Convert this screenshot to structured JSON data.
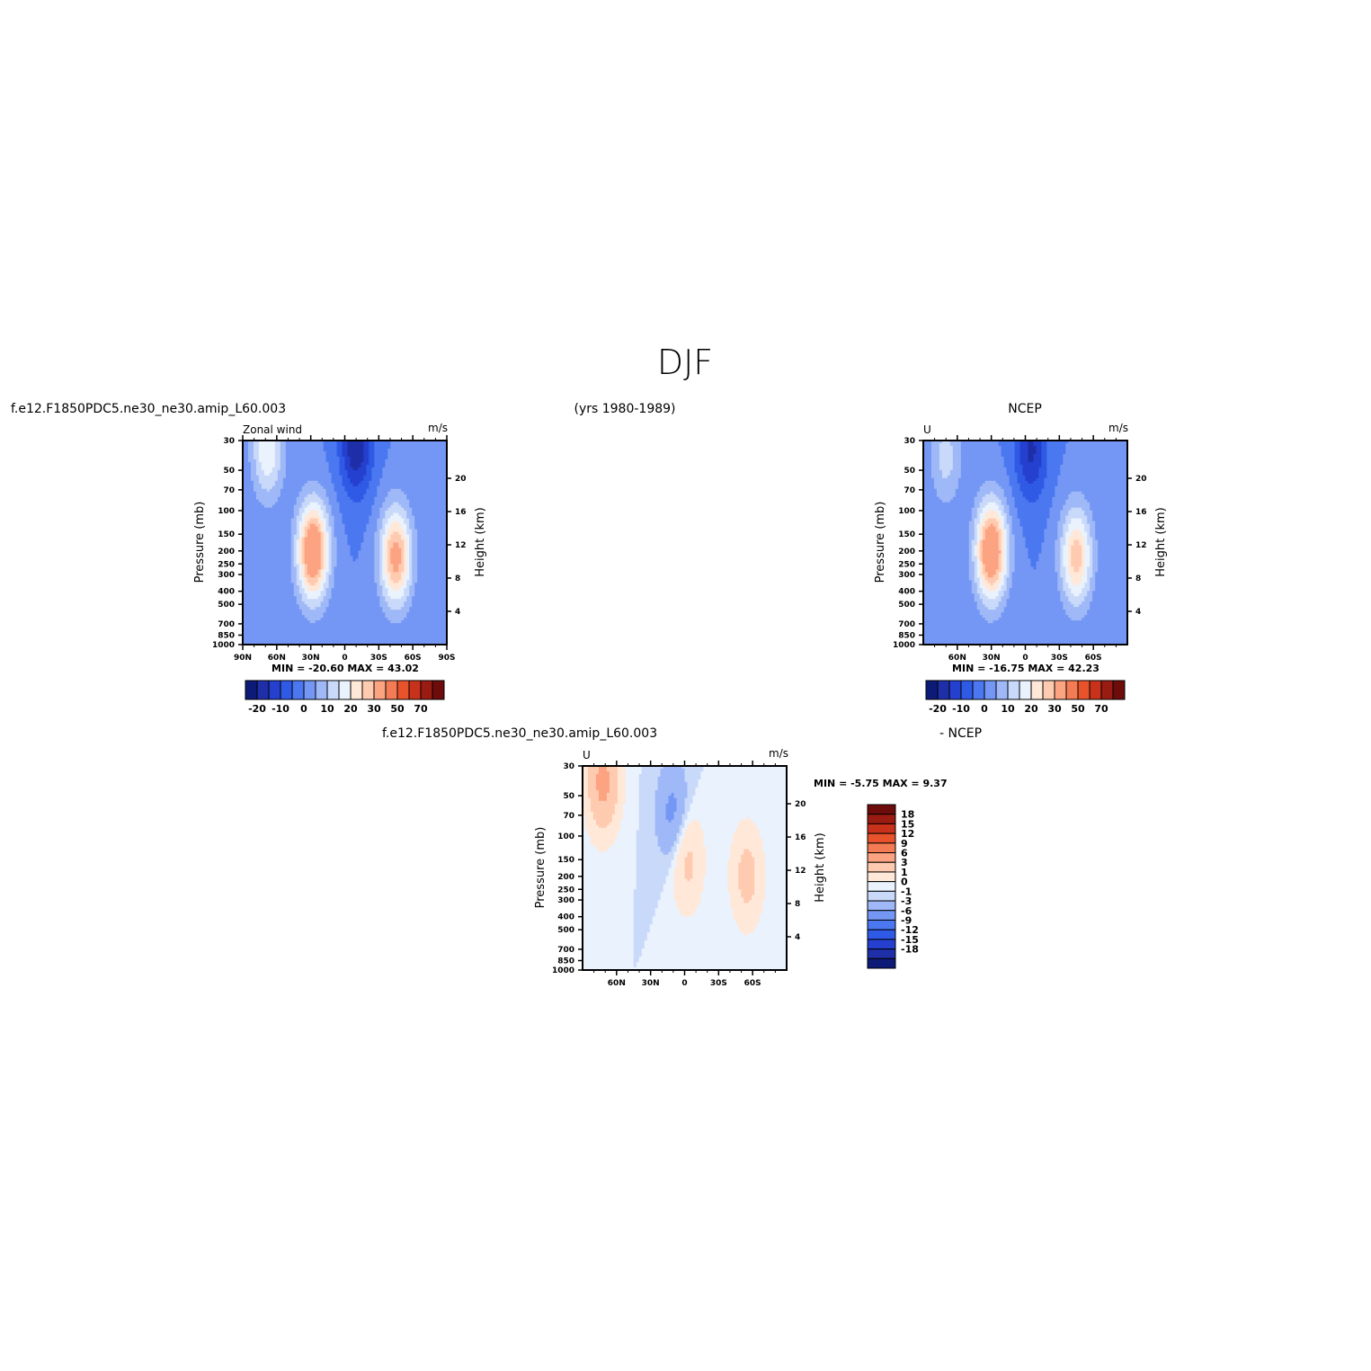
{
  "title": "DJF",
  "header": {
    "left": "f.e12.F1850PDC5.ne30_ne30.amip_L60.003",
    "center": "(yrs 1980-1989)",
    "right": "NCEP"
  },
  "panels": {
    "model": {
      "var_label": "Zonal wind",
      "units": "m/s",
      "min_max": "MIN = -20.60   MAX =   43.02"
    },
    "obs": {
      "var_label": "U",
      "units": "m/s",
      "min_max": "MIN = -16.75   MAX =   42.23"
    },
    "diff": {
      "title_left": "f.e12.F1850PDC5.ne30_ne30.amip_L60.003",
      "title_right": "- NCEP",
      "var_label": "U",
      "units": "m/s",
      "min_max": "MIN =   -5.75   MAX =     9.37"
    }
  },
  "axes": {
    "ylabel_left": "Pressure (mb)",
    "ylabel_right": "Height (km)",
    "pressure_ticks": [
      "30",
      "50",
      "70",
      "100",
      "150",
      "200",
      "250",
      "300",
      "400",
      "500",
      "700",
      "850",
      "1000"
    ],
    "height_ticks": [
      "20",
      "16",
      "12",
      "8",
      "4"
    ],
    "lat_ticks_full": [
      "90N",
      "60N",
      "30N",
      "0",
      "30S",
      "60S",
      "90S"
    ],
    "lat_ticks_inner": [
      "60N",
      "30N",
      "0",
      "30S",
      "60S"
    ]
  },
  "chart_data": [
    {
      "type": "heatmap",
      "panel": "model",
      "title": "Zonal wind",
      "xlabel": "",
      "ylabel": "Pressure (mb)",
      "y2label": "Height (km)",
      "units": "m/s",
      "x_range": [
        "90N",
        "90S"
      ],
      "y_range_mb": [
        1000,
        30
      ],
      "min": -20.6,
      "max": 43.02,
      "features": [
        {
          "kind": "max",
          "lat": 28,
          "p": 200,
          "value": 40
        },
        {
          "kind": "max",
          "lat": -45,
          "p": 220,
          "value": 33
        },
        {
          "kind": "max",
          "lat": 68,
          "p": 35,
          "value": 20
        },
        {
          "kind": "min",
          "lat": -10,
          "p": 32,
          "value": -20
        }
      ],
      "colorbar_levels": [
        -20,
        -15,
        -10,
        -5,
        0,
        5,
        10,
        15,
        20,
        25,
        30,
        40,
        50,
        60,
        70
      ],
      "colorbar_labels": [
        "-20",
        "-10",
        "0",
        "10",
        "20",
        "30",
        "50",
        "70"
      ],
      "colors": [
        "#0d1a78",
        "#1e2fa8",
        "#2540cf",
        "#2f5ae6",
        "#4b78f0",
        "#7497f5",
        "#9fb8f7",
        "#c8d9fa",
        "#e9f2fd",
        "#ffe8d8",
        "#ffcbb0",
        "#fca382",
        "#f47c55",
        "#e8532c",
        "#c8321a",
        "#9a1b12",
        "#6e0c0c"
      ]
    },
    {
      "type": "heatmap",
      "panel": "obs",
      "title": "U",
      "xlabel": "",
      "ylabel": "Pressure (mb)",
      "y2label": "Height (km)",
      "units": "m/s",
      "x_range": [
        "90N",
        "90S"
      ],
      "y_range_mb": [
        1000,
        30
      ],
      "min": -16.75,
      "max": 42.23,
      "features": [
        {
          "kind": "max",
          "lat": 30,
          "p": 200,
          "value": 40
        },
        {
          "kind": "max",
          "lat": -45,
          "p": 220,
          "value": 28
        },
        {
          "kind": "max",
          "lat": 70,
          "p": 40,
          "value": 12
        },
        {
          "kind": "min",
          "lat": -5,
          "p": 35,
          "value": -16
        }
      ],
      "colorbar_levels": [
        -20,
        -15,
        -10,
        -5,
        0,
        5,
        10,
        15,
        20,
        25,
        30,
        40,
        50,
        60,
        70
      ],
      "colorbar_labels": [
        "-20",
        "-10",
        "0",
        "10",
        "20",
        "30",
        "50",
        "70"
      ],
      "colors": [
        "#0d1a78",
        "#1e2fa8",
        "#2540cf",
        "#2f5ae6",
        "#4b78f0",
        "#7497f5",
        "#9fb8f7",
        "#c8d9fa",
        "#e9f2fd",
        "#ffe8d8",
        "#ffcbb0",
        "#fca382",
        "#f47c55",
        "#e8532c",
        "#c8321a",
        "#9a1b12",
        "#6e0c0c"
      ]
    },
    {
      "type": "heatmap",
      "panel": "diff",
      "title": "U",
      "xlabel": "",
      "ylabel": "Pressure (mb)",
      "y2label": "Height (km)",
      "units": "m/s",
      "x_range": [
        "90N",
        "90S"
      ],
      "y_range_mb": [
        1000,
        30
      ],
      "min": -5.75,
      "max": 9.37,
      "features": [
        {
          "kind": "max",
          "lat": 72,
          "p": 40,
          "value": 7
        },
        {
          "kind": "max",
          "lat": -55,
          "p": 200,
          "value": 4
        },
        {
          "kind": "max",
          "lat": -2,
          "p": 150,
          "value": 4
        },
        {
          "kind": "min",
          "lat": 10,
          "p": 70,
          "value": -4
        }
      ],
      "colorbar_levels": [
        -18,
        -15,
        -12,
        -9,
        -6,
        -3,
        -1,
        0,
        1,
        3,
        6,
        9,
        12,
        15,
        18
      ],
      "colorbar_labels": [
        "18",
        "15",
        "12",
        "9",
        "6",
        "3",
        "1",
        "0",
        "-1",
        "-3",
        "-6",
        "-9",
        "-12",
        "-15",
        "-18"
      ],
      "colors": [
        "#6e0c0c",
        "#9a1b12",
        "#c8321a",
        "#e8532c",
        "#f47c55",
        "#fca382",
        "#ffcbb0",
        "#ffe8d8",
        "#e9f2fd",
        "#c8d9fa",
        "#9fb8f7",
        "#7497f5",
        "#4b78f0",
        "#2f5ae6",
        "#2540cf",
        "#1e2fa8",
        "#0d1a78"
      ]
    }
  ]
}
